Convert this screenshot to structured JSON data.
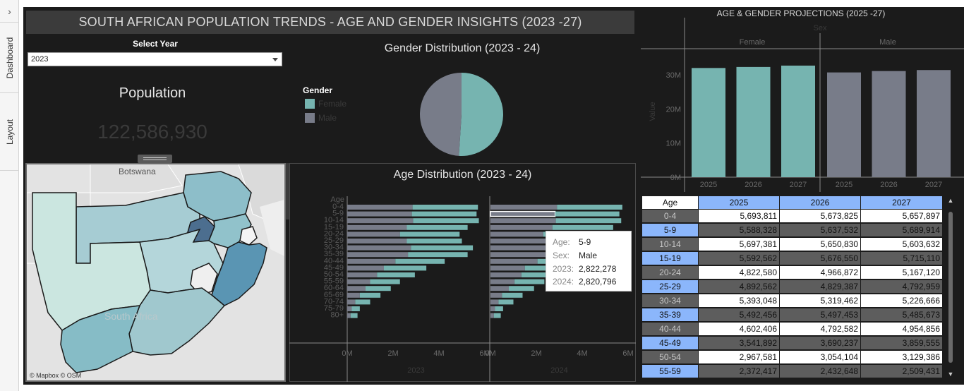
{
  "sidebar": {
    "toggle_icon": "chevron-right-icon",
    "tabs": [
      {
        "label": "Dashboard"
      },
      {
        "label": "Layout"
      }
    ]
  },
  "header": {
    "title": "SOUTH AFRICAN POPULATION TRENDS - AGE AND GENDER INSIGHTS (2023 -27)"
  },
  "filter": {
    "label": "Select Year",
    "selected": "2023"
  },
  "kpi": {
    "label": "Population",
    "value": "122,586,930"
  },
  "gender_chart": {
    "title": "Gender Distribution (2023 - 24)",
    "legend_title": "Gender",
    "legend": [
      {
        "label": "Female",
        "color": "#76b4b0"
      },
      {
        "label": "Male",
        "color": "#787c89"
      }
    ],
    "female_share": 0.51
  },
  "map": {
    "labels": {
      "country_north": "Botswana",
      "country_main": "South Africa",
      "attribution": "© Mapbox © OSM"
    },
    "tools": [
      "close-icon",
      "popout-icon",
      "filter-icon",
      "more-icon"
    ]
  },
  "age_chart": {
    "title": "Age Distribution (2023 - 24)",
    "axis_label": "Age",
    "groups": [
      "0-4",
      "5-9",
      "10-14",
      "15-19",
      "20-24",
      "25-29",
      "30-34",
      "35-39",
      "40-44",
      "45-49",
      "50-54",
      "55-59",
      "60-64",
      "65-69",
      "70-74",
      "75-79",
      "80+"
    ],
    "x_ticks": [
      "0M",
      "2M",
      "4M",
      "6M"
    ],
    "panels": [
      {
        "label": "2023",
        "male": [
          2.85,
          2.82,
          2.87,
          2.6,
          2.3,
          2.6,
          2.78,
          2.65,
          2.1,
          1.6,
          1.3,
          1.0,
          0.8,
          0.55,
          0.35,
          0.2,
          0.15
        ],
        "female": [
          2.85,
          2.82,
          2.87,
          2.65,
          2.6,
          2.4,
          2.7,
          2.6,
          2.15,
          1.85,
          1.65,
          1.3,
          1.1,
          0.9,
          0.65,
          0.35,
          0.3
        ]
      },
      {
        "label": "2024",
        "male": [
          2.9,
          2.82,
          2.85,
          2.7,
          2.3,
          2.55,
          2.7,
          2.6,
          2.05,
          1.5,
          1.35,
          1.05,
          0.8,
          0.5,
          0.35,
          0.2,
          0.15
        ],
        "female": [
          2.85,
          2.8,
          2.85,
          2.65,
          2.55,
          2.4,
          2.75,
          2.6,
          2.2,
          1.85,
          1.7,
          1.3,
          1.1,
          0.9,
          0.65,
          0.35,
          0.3
        ]
      }
    ],
    "xlim": [
      0,
      6
    ],
    "highlight_index": 1,
    "highlight_panel": 1
  },
  "tooltip": {
    "age_key": "Age:",
    "age": "5-9",
    "sex_key": "Sex:",
    "sex": "Male",
    "y1_key": "2023:",
    "y1": "2,822,278",
    "y2_key": "2024:",
    "y2": "2,820,796"
  },
  "projection_chart": {
    "title": "AGE & GENDER PROJECTIONS (2025 -27)",
    "sex_header": "Sex",
    "groups": [
      {
        "label": "Female",
        "color": "#76b4b0",
        "years": [
          "2025",
          "2026",
          "2027"
        ],
        "values": [
          32.0,
          32.3,
          32.7
        ]
      },
      {
        "label": "Male",
        "color": "#787c89",
        "years": [
          "2025",
          "2026",
          "2027"
        ],
        "values": [
          30.7,
          31.1,
          31.4
        ]
      }
    ],
    "y_ticks": [
      "0M",
      "10M",
      "20M",
      "30M"
    ],
    "y_label": "Value",
    "ylim": [
      0,
      36
    ]
  },
  "table": {
    "headers": [
      "Age",
      "2025",
      "2026",
      "2027"
    ],
    "rows": [
      [
        "0-4",
        "5,693,811",
        "5,673,825",
        "5,657,897"
      ],
      [
        "5-9",
        "5,588,328",
        "5,637,532",
        "5,689,914"
      ],
      [
        "10-14",
        "5,697,381",
        "5,650,830",
        "5,603,632"
      ],
      [
        "15-19",
        "5,592,562",
        "5,676,550",
        "5,715,110"
      ],
      [
        "20-24",
        "4,822,580",
        "4,966,872",
        "5,167,120"
      ],
      [
        "25-29",
        "4,892,562",
        "4,829,387",
        "4,792,959"
      ],
      [
        "30-34",
        "5,393,048",
        "5,319,462",
        "5,226,666"
      ],
      [
        "35-39",
        "5,492,456",
        "5,497,453",
        "5,485,673"
      ],
      [
        "40-44",
        "4,602,406",
        "4,792,582",
        "4,954,856"
      ],
      [
        "45-49",
        "3,541,892",
        "3,690,237",
        "3,859,555"
      ],
      [
        "50-54",
        "2,967,581",
        "3,054,104",
        "3,129,386"
      ],
      [
        "55-59",
        "2,372,417",
        "2,432,648",
        "2,509,431"
      ]
    ]
  },
  "colors": {
    "female": "#76b4b0",
    "male": "#787c89",
    "dashboard_bg": "#1b1b1b",
    "header_blue": "#8bb6fb"
  }
}
